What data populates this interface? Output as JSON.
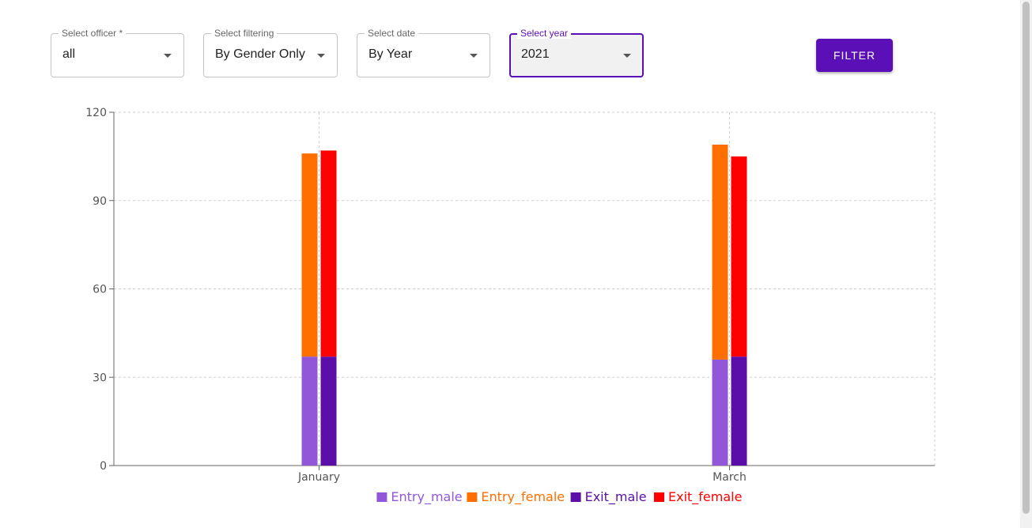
{
  "filters": {
    "officer": {
      "label": "Select officer *",
      "value": "all"
    },
    "filtering": {
      "label": "Select filtering",
      "value": "By Gender Only"
    },
    "date": {
      "label": "Select date",
      "value": "By Year"
    },
    "year": {
      "label": "Select year",
      "value": "2021"
    }
  },
  "filter_button": {
    "label": "FILTER"
  },
  "chart_data": {
    "type": "bar",
    "stacked": true,
    "categories": [
      "January",
      "March"
    ],
    "ylim": [
      0,
      120
    ],
    "yticks": [
      0,
      30,
      60,
      90,
      120
    ],
    "grid": true,
    "legend_position": "bottom",
    "stacks": [
      {
        "stack": "Entry",
        "series": [
          {
            "name": "Entry_male",
            "color": "#9257d9",
            "values": [
              37,
              36
            ]
          },
          {
            "name": "Entry_female",
            "color": "#ff6f00",
            "values": [
              69,
              73
            ]
          }
        ]
      },
      {
        "stack": "Exit",
        "series": [
          {
            "name": "Exit_male",
            "color": "#5b0fa8",
            "values": [
              37,
              37
            ]
          },
          {
            "name": "Exit_female",
            "color": "#ff0000",
            "values": [
              70,
              68
            ]
          }
        ]
      }
    ],
    "legend": [
      {
        "name": "Entry_male",
        "color": "#9257d9"
      },
      {
        "name": "Entry_female",
        "color": "#ff6f00"
      },
      {
        "name": "Exit_male",
        "color": "#5b0fa8"
      },
      {
        "name": "Exit_female",
        "color": "#ff0000"
      }
    ]
  }
}
